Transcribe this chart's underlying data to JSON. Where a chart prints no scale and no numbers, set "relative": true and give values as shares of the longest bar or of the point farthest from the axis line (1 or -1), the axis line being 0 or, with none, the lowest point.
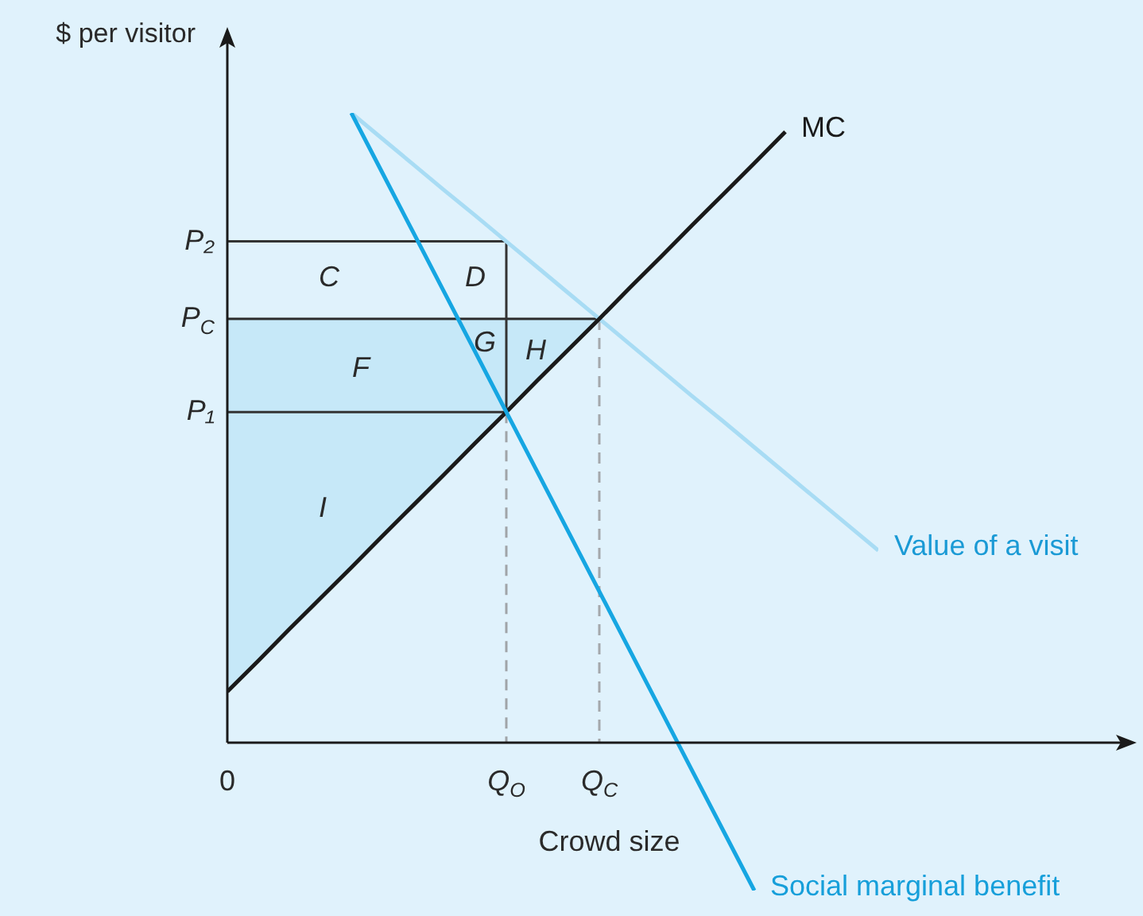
{
  "chart_data": {
    "type": "line",
    "relative": true,
    "xlabel": "Crowd size",
    "ylabel": "$ per visitor",
    "marker": "none",
    "categories": [
      "0",
      null,
      null,
      null,
      null,
      null,
      null,
      null,
      null,
      "Q$_{O}$",
      null,
      null,
      "Q$_{C}$",
      null,
      null,
      null,
      null,
      null,
      null,
      null,
      null,
      null
    ],
    "series": [
      {
        "type": "area",
        "color": "#c6e8f8",
        "x": [
          "0",
          "Q$_{C}$",
          "0"
        ],
        "values": [
          0.673,
          0.673,
          0.081
        ]
      },
      {
        "type": "line",
        "color": "#333333",
        "x": [
          "0",
          "Q$_{O}$",
          "Q$_{O}$",
          "0"
        ],
        "values": [
          0.796,
          0.796,
          0.525,
          0.525
        ]
      },
      {
        "type": "line",
        "color": "#a0a4a8",
        "line_style": "dashed",
        "x": [
          "Q$_{O}$",
          "Q$_{O}$"
        ],
        "values": [
          0.525,
          0
        ]
      },
      {
        "type": "line",
        "color": "#a4a8ac",
        "line_style": "dashed",
        "x": [
          "Q$_{C}$",
          "Q$_{C}$"
        ],
        "values": [
          0.673,
          0
        ]
      },
      {
        "type": "line",
        "name": "Value of a visit",
        "color": "#a8dcf4",
        "values": [
          null,
          null,
          null,
          null,
          1,
          0.959,
          0.918,
          0.877,
          0.837,
          0.796,
          0.755,
          0.714,
          0.673,
          0.632,
          0.591,
          0.55,
          0.51,
          0.469,
          0.428,
          0.387,
          0.346,
          0.305
        ]
      },
      {
        "type": "line",
        "name": "MC",
        "color": "#1a1a1a",
        "values": [
          0.081,
          0.13,
          0.18,
          0.229,
          0.278,
          0.328,
          0.377,
          0.426,
          0.476,
          0.525,
          0.575,
          0.624,
          0.673,
          0.723,
          0.772,
          0.822,
          0.871,
          0.92,
          0.97,
          null,
          null,
          null
        ]
      },
      {
        "type": "line",
        "name": "Social marginal benefit",
        "color": "#16a6e2",
        "values": [
          null,
          null,
          null,
          null,
          1,
          0.905,
          0.81,
          0.715,
          0.62,
          0.525,
          0.43,
          0.335,
          0.24,
          0.145,
          0.05,
          -0.045,
          -0.14,
          -0.235,
          null,
          null,
          null,
          null
        ]
      }
    ],
    "annotations": [
      "C",
      "D",
      "G",
      "H",
      "F",
      "I",
      {
        "text": "P₂",
        "x": "0",
        "y": 0.796
      },
      {
        "text": "P$_{C}$",
        "x": "0",
        "y": 0.673
      },
      {
        "text": "P₁",
        "x": "0",
        "y": 0.525
      }
    ]
  }
}
